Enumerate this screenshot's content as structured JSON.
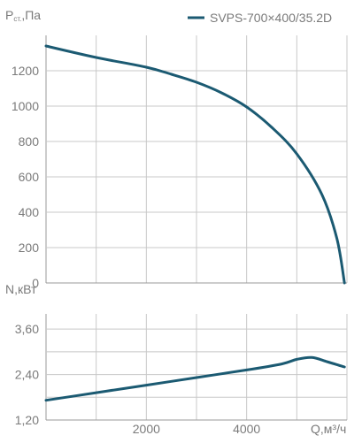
{
  "chart_data": [
    {
      "type": "line",
      "ylabel": "Pст,Па",
      "ylabel_main": "P",
      "ylabel_sub": "ст.",
      "ylabel_unit": ",Па",
      "ylim": [
        0,
        1400
      ],
      "yticks": [
        0,
        200,
        400,
        600,
        800,
        1000,
        1200
      ],
      "xlim": [
        0,
        6000
      ],
      "grid": true,
      "legend_position": "top-right",
      "series": [
        {
          "name": "SVPS-700×400/35.2D",
          "color": "#1b5a72",
          "x": [
            0,
            1000,
            2000,
            2500,
            3000,
            3500,
            4000,
            4500,
            5000,
            5500,
            5800,
            5950
          ],
          "y": [
            1340,
            1275,
            1220,
            1180,
            1135,
            1075,
            995,
            880,
            730,
            500,
            250,
            0
          ]
        }
      ]
    },
    {
      "type": "line",
      "ylabel": "N,кВт",
      "xlabel": "Q,м³/ч",
      "ylim": [
        1.2,
        4.0
      ],
      "yticks": [
        1.2,
        2.4,
        3.6
      ],
      "ytick_labels": [
        "1,20",
        "2,40",
        "3,60"
      ],
      "xlim": [
        0,
        6000
      ],
      "xticks": [
        2000,
        4000
      ],
      "xtick_labels": [
        "2000",
        "4000"
      ],
      "grid": true,
      "series": [
        {
          "name": "SVPS-700×400/35.2D",
          "color": "#1b5a72",
          "x": [
            0,
            1000,
            2000,
            3000,
            4000,
            4700,
            5000,
            5300,
            5600,
            5950
          ],
          "y": [
            1.72,
            1.92,
            2.12,
            2.32,
            2.52,
            2.68,
            2.8,
            2.85,
            2.74,
            2.6
          ]
        }
      ]
    }
  ],
  "colors": {
    "curve": "#1b5a72",
    "grid": "#c8c8c8",
    "frame": "#9a9a9a",
    "text": "#7a7a7a"
  }
}
